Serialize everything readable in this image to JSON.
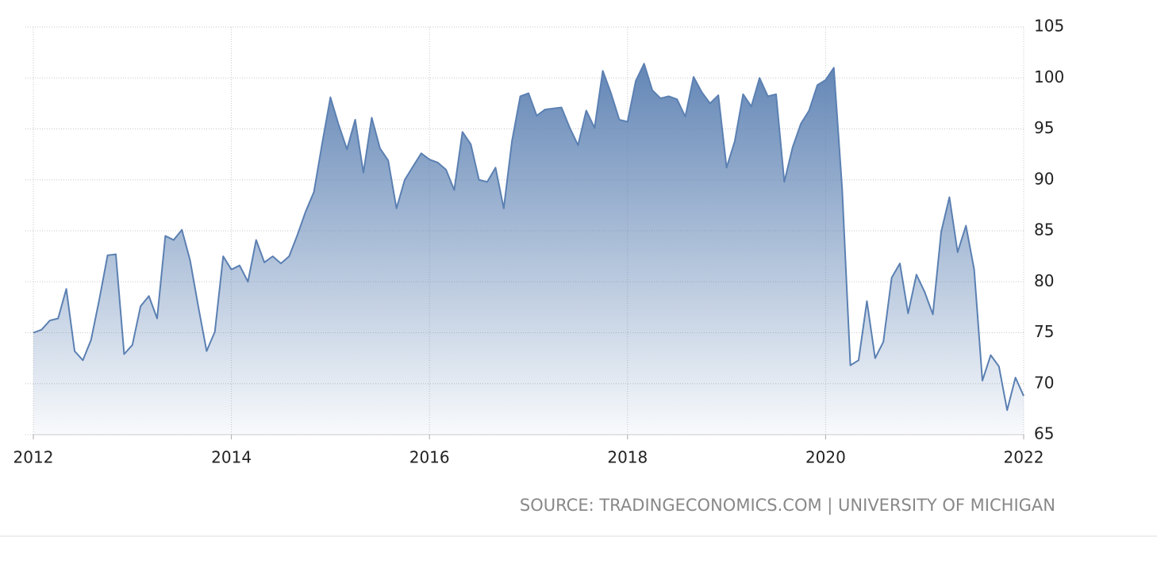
{
  "chart_data": {
    "type": "area",
    "source": "SOURCE: TRADINGECONOMICS.COM | UNIVERSITY OF MICHIGAN",
    "color": "#5b80b2",
    "x": [
      2012,
      2012.083,
      2012.167,
      2012.25,
      2012.333,
      2012.417,
      2012.5,
      2012.583,
      2012.667,
      2012.75,
      2012.833,
      2012.917,
      2013,
      2013.083,
      2013.167,
      2013.25,
      2013.333,
      2013.417,
      2013.5,
      2013.583,
      2013.667,
      2013.75,
      2013.833,
      2013.917,
      2014,
      2014.083,
      2014.167,
      2014.25,
      2014.333,
      2014.417,
      2014.5,
      2014.583,
      2014.667,
      2014.75,
      2014.833,
      2014.917,
      2015,
      2015.083,
      2015.167,
      2015.25,
      2015.333,
      2015.417,
      2015.5,
      2015.583,
      2015.667,
      2015.75,
      2015.833,
      2015.917,
      2016,
      2016.083,
      2016.167,
      2016.25,
      2016.333,
      2016.417,
      2016.5,
      2016.583,
      2016.667,
      2016.75,
      2016.833,
      2016.917,
      2017,
      2017.083,
      2017.167,
      2017.25,
      2017.333,
      2017.417,
      2017.5,
      2017.583,
      2017.667,
      2017.75,
      2017.833,
      2017.917,
      2018,
      2018.083,
      2018.167,
      2018.25,
      2018.333,
      2018.417,
      2018.5,
      2018.583,
      2018.667,
      2018.75,
      2018.833,
      2018.917,
      2019,
      2019.083,
      2019.167,
      2019.25,
      2019.333,
      2019.417,
      2019.5,
      2019.583,
      2019.667,
      2019.75,
      2019.833,
      2019.917,
      2020,
      2020.083,
      2020.167,
      2020.25,
      2020.333,
      2020.417,
      2020.5,
      2020.583,
      2020.667,
      2020.75,
      2020.833,
      2020.917,
      2021,
      2021.083,
      2021.167,
      2021.25,
      2021.333,
      2021.417,
      2021.5,
      2021.583,
      2021.667,
      2021.75,
      2021.833,
      2021.917,
      2022
    ],
    "values": [
      75.0,
      75.3,
      76.2,
      76.4,
      79.3,
      73.2,
      72.3,
      74.3,
      78.3,
      82.6,
      82.7,
      72.9,
      73.8,
      77.6,
      78.6,
      76.4,
      84.5,
      84.1,
      85.1,
      82.1,
      77.5,
      73.2,
      75.1,
      82.5,
      81.2,
      81.6,
      80.0,
      84.1,
      81.9,
      82.5,
      81.8,
      82.5,
      84.6,
      86.9,
      88.8,
      93.6,
      98.1,
      95.4,
      93.0,
      95.9,
      90.7,
      96.1,
      93.1,
      91.9,
      87.2,
      90.0,
      91.3,
      92.6,
      92.0,
      91.7,
      91.0,
      89.0,
      94.7,
      93.5,
      90.0,
      89.8,
      91.2,
      87.2,
      93.8,
      98.2,
      98.5,
      96.3,
      96.9,
      97.0,
      97.1,
      95.1,
      93.4,
      96.8,
      95.1,
      100.7,
      98.5,
      95.9,
      95.7,
      99.7,
      101.4,
      98.8,
      98.0,
      98.2,
      97.9,
      96.2,
      100.1,
      98.6,
      97.5,
      98.3,
      91.2,
      93.8,
      98.4,
      97.2,
      100.0,
      98.2,
      98.4,
      89.8,
      93.2,
      95.5,
      96.8,
      99.3,
      99.8,
      101.0,
      89.1,
      71.8,
      72.3,
      78.1,
      72.5,
      74.1,
      80.4,
      81.8,
      76.9,
      80.7,
      79.0,
      76.8,
      84.9,
      88.3,
      82.9,
      85.5,
      81.2,
      70.3,
      72.8,
      71.7,
      67.4,
      70.6,
      68.8
    ],
    "xlim": [
      2012,
      2022
    ],
    "xticks": [
      2012,
      2014,
      2016,
      2018,
      2020,
      2022
    ],
    "ylim": [
      65,
      105
    ],
    "yticks": [
      65,
      70,
      75,
      80,
      85,
      90,
      95,
      100,
      105
    ],
    "grid": true
  }
}
